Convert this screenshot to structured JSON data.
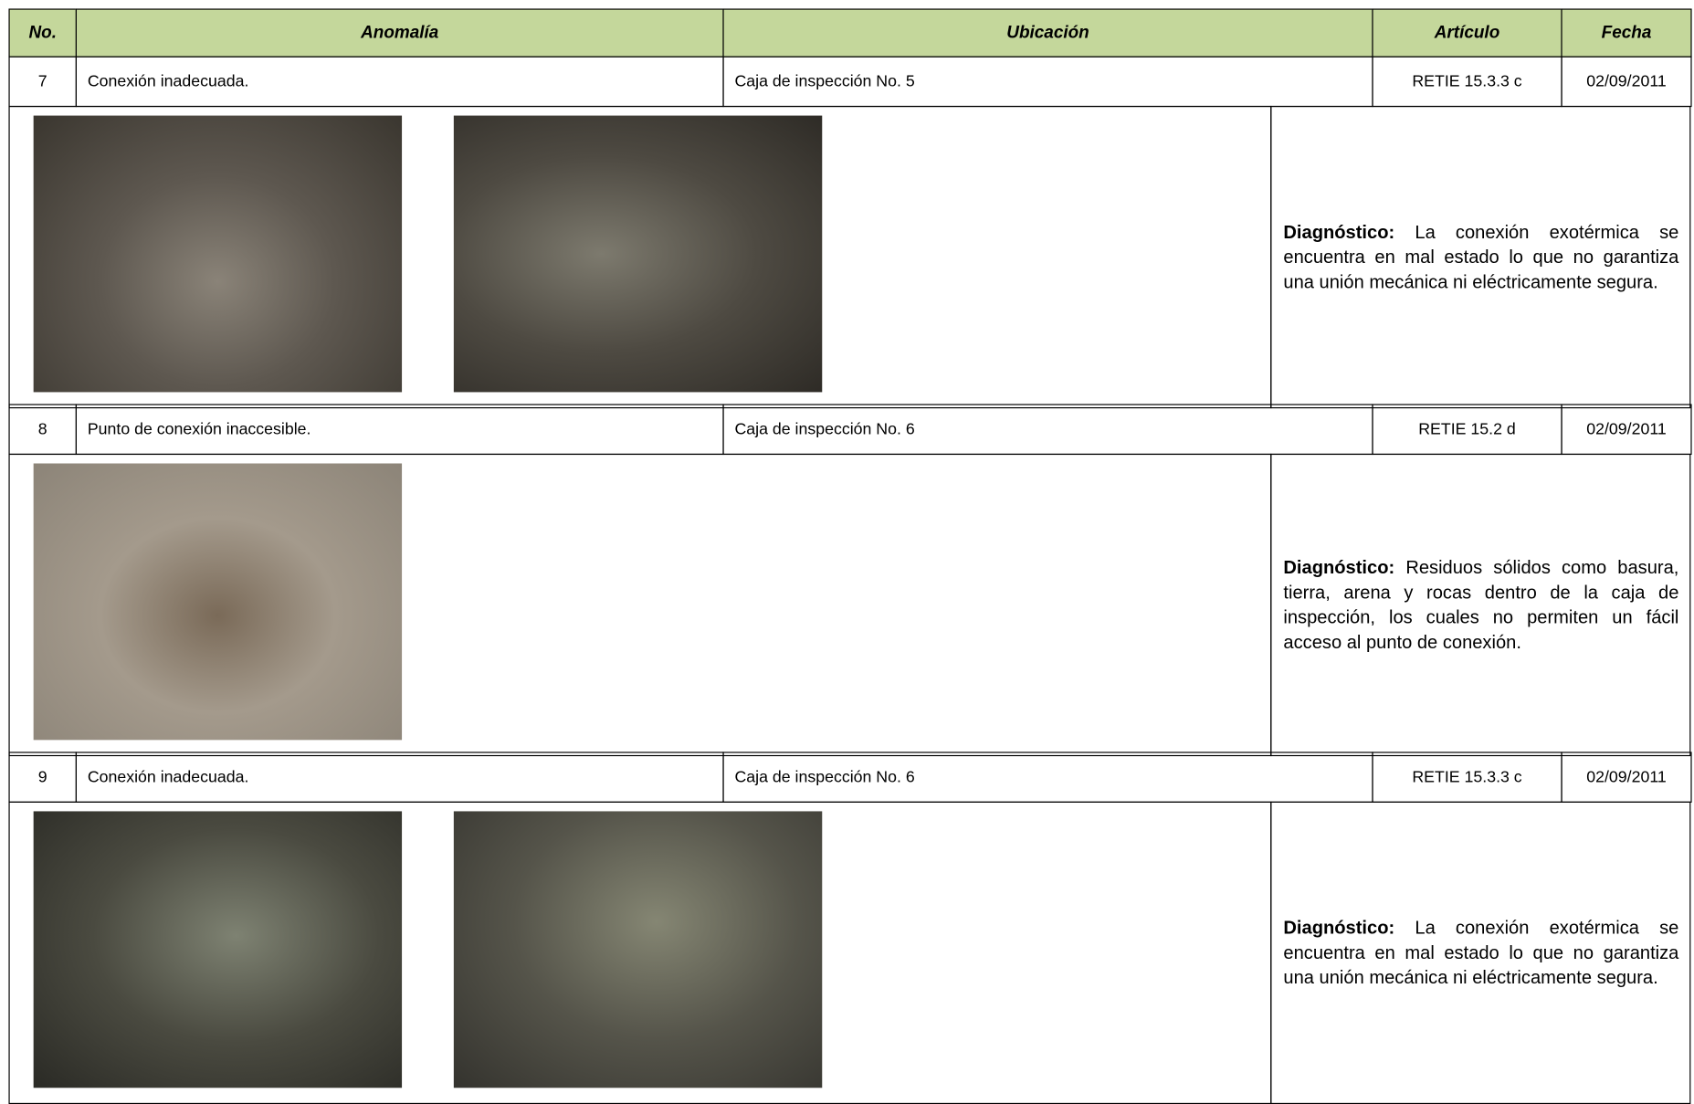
{
  "header": {
    "no": "No.",
    "anomalia": "Anomalía",
    "ubicacion": "Ubicación",
    "articulo": "Artículo",
    "fecha": "Fecha"
  },
  "rows": [
    {
      "no": "7",
      "anomalia": "Conexión inadecuada.",
      "ubicacion": "Caja de inspección No. 5",
      "articulo": "RETIE 15.3.3 c",
      "fecha": "02/09/2011",
      "diagnostico_label": "Diagnóstico:",
      "diagnostico": "La conexión exotérmica se encuentra en mal estado lo que no garantiza una unión mecánica ni eléctricamente segura."
    },
    {
      "no": "8",
      "anomalia": "Punto de conexión inaccesible.",
      "ubicacion": "Caja de inspección No. 6",
      "articulo": "RETIE 15.2 d",
      "fecha": "02/09/2011",
      "diagnostico_label": "Diagnóstico:",
      "diagnostico": "Residuos sólidos como basura, tierra, arena y rocas dentro de la caja de inspección, los cuales no permiten un fácil acceso  al punto de conexión."
    },
    {
      "no": "9",
      "anomalia": "Conexión inadecuada.",
      "ubicacion": "Caja de inspección No. 6",
      "articulo": "RETIE 15.3.3 c",
      "fecha": "02/09/2011",
      "diagnostico_label": "Diagnóstico:",
      "diagnostico": "La conexión exotérmica se encuentra en mal estado lo que no garantiza una unión mecánica ni eléctricamente segura."
    }
  ]
}
